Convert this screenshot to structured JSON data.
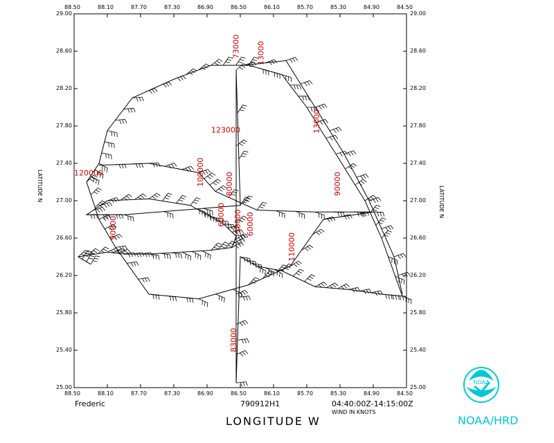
{
  "map": {
    "storm_name": "Frederic",
    "flight_id": "790912H1",
    "time_range": "04:40:00Z-14:15:00Z",
    "wind_units_label": "WIND IN KNOTS",
    "x_axis_title": "LONGITUDE  W",
    "y_axis_title_left": "LATITUDE  N",
    "y_axis_title_right": "LATITUDE  N",
    "logo_text": "NOAA",
    "org_label": "NOAA/HRD",
    "x_ticks": [
      "88.50",
      "88.10",
      "87.70",
      "87.30",
      "86.90",
      "86.50",
      "86.10",
      "85.70",
      "85.30",
      "84.90",
      "84.50"
    ],
    "y_ticks": [
      "29.00",
      "28.60",
      "28.20",
      "27.80",
      "27.40",
      "27.00",
      "26.60",
      "26.20",
      "25.80",
      "25.40",
      "25.00"
    ],
    "lon_range": [
      -88.5,
      -84.5
    ],
    "lat_range": [
      25.0,
      29.0
    ],
    "altitude_labels": [
      {
        "text": "73000",
        "lon": -86.52,
        "lat": 28.52,
        "rot": -90
      },
      {
        "text": "13000",
        "lon": -86.22,
        "lat": 28.45,
        "rot": -90
      },
      {
        "text": "13000",
        "lon": -85.55,
        "lat": 27.72,
        "rot": -90
      },
      {
        "text": "123000",
        "lon": -86.85,
        "lat": 27.73,
        "rot": 0
      },
      {
        "text": "120000",
        "lon": -88.5,
        "lat": 27.27,
        "rot": 0
      },
      {
        "text": "100000",
        "lon": -86.95,
        "lat": 27.15,
        "rot": -90
      },
      {
        "text": "80000",
        "lon": -86.6,
        "lat": 27.05,
        "rot": -90
      },
      {
        "text": "90000",
        "lon": -85.3,
        "lat": 27.05,
        "rot": -90
      },
      {
        "text": "60000",
        "lon": -86.7,
        "lat": 26.72,
        "rot": -90
      },
      {
        "text": "50000",
        "lon": -86.5,
        "lat": 26.65,
        "rot": -90
      },
      {
        "text": "60000",
        "lon": -86.35,
        "lat": 26.62,
        "rot": -90
      },
      {
        "text": "90000",
        "lon": -88.0,
        "lat": 26.58,
        "rot": -90
      },
      {
        "text": "110000",
        "lon": -85.85,
        "lat": 26.35,
        "rot": -90
      },
      {
        "text": "83000",
        "lon": -86.55,
        "lat": 25.38,
        "rot": -90
      }
    ]
  }
}
